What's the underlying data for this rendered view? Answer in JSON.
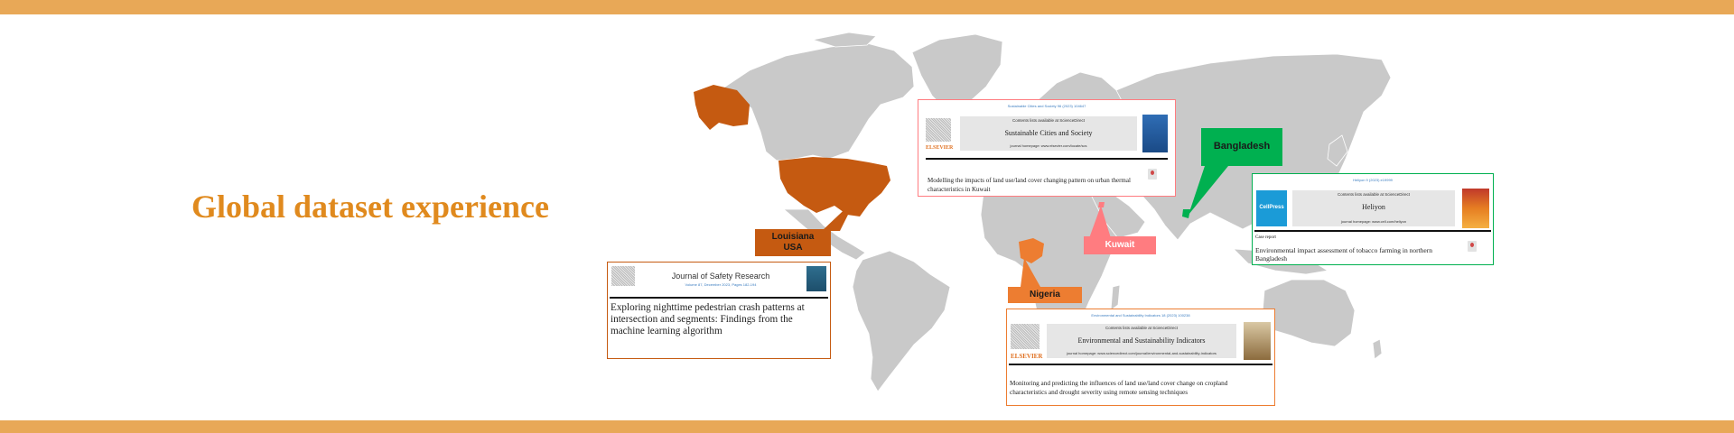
{
  "title": "Global dataset experience",
  "colors": {
    "band": "#E8A857",
    "title": "#E08A1E",
    "land": "#C9C9C9",
    "usa": "#C55A11",
    "nigeria": "#ED7D31",
    "kuwait": "#FF7C80",
    "bangladesh": "#00B050"
  },
  "callouts": {
    "usa": {
      "line1": "Louisiana",
      "line2": "USA"
    },
    "nigeria": {
      "label": "Nigeria"
    },
    "kuwait": {
      "label": "Kuwait"
    },
    "bangladesh": {
      "label": "Bangladesh"
    }
  },
  "cards": {
    "safety": {
      "journal": "Journal of Safety Research",
      "ref": "Volume 87, December 2023, Pages 182-194",
      "publisher": "ELSEVIER",
      "paper_title": "Exploring nighttime pedestrian crash patterns at intersection and segments: Findings from the machine learning algorithm"
    },
    "scs": {
      "ref": "Sustainable Cities and Society 96 (2023) 104647",
      "availability": "Contents lists available at ScienceDirect",
      "journal": "Sustainable Cities and Society",
      "homepage": "journal homepage: www.elsevier.com/locate/scs",
      "publisher": "ELSEVIER",
      "paper_title": "Modelling the impacts of land use/land cover changing pattern on urban thermal characteristics in Kuwait"
    },
    "heliyon": {
      "ref": "Heliyon 9 (2023) e19999",
      "availability": "Contents lists available at ScienceDirect",
      "journal": "Heliyon",
      "homepage": "journal homepage: www.cell.com/heliyon",
      "publisher": "CellPress",
      "article_type": "Case report",
      "paper_title": "Environmental impact assessment of tobacco farming in northern Bangladesh"
    },
    "esi": {
      "ref": "Environmental and Sustainability Indicators 18 (2023) 100238",
      "availability": "Contents lists available at ScienceDirect",
      "journal": "Environmental and Sustainability Indicators",
      "homepage": "journal homepage: www.sciencedirect.com/journal/environmental-and-sustainability-indicators",
      "publisher": "ELSEVIER",
      "paper_title": "Monitoring and predicting the influences of land use/land cover change on cropland characteristics and drought severity using remote sensing techniques"
    }
  }
}
